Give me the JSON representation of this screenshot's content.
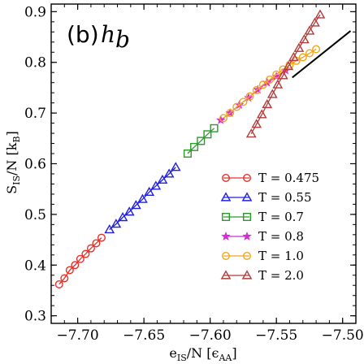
{
  "chart_data": {
    "type": "scatter",
    "panel_label": "(b)",
    "panel_symbol": "h",
    "panel_symbol_sub": "b",
    "xlabel": "e",
    "xlabel_sub": "IS",
    "xlabel_rest": "/N [ϵ",
    "xlabel_unit_sub": "AA",
    "xlabel_end": "]",
    "ylabel": "S",
    "ylabel_sub": "IS",
    "ylabel_rest": "/N [k",
    "ylabel_unit_sub": "B",
    "ylabel_end": "]",
    "xlim": [
      -7.72,
      -7.49
    ],
    "ylim": [
      0.285,
      0.915
    ],
    "xticks": [
      -7.7,
      -7.65,
      -7.6,
      -7.55,
      -7.5
    ],
    "xtick_labels": [
      "−7.70",
      "−7.65",
      "−7.60",
      "−7.55",
      "−7.50"
    ],
    "yticks": [
      0.3,
      0.4,
      0.5,
      0.6,
      0.7,
      0.8,
      0.9
    ],
    "ytick_labels": [
      "0.3",
      "0.4",
      "0.5",
      "0.6",
      "0.7",
      "0.8",
      "0.9"
    ],
    "legend_position": "lower-right",
    "fit_line": {
      "color": "#000000",
      "x": [
        -7.538,
        -7.494
      ],
      "y": [
        0.77,
        0.862
      ]
    },
    "series": [
      {
        "name": "T = 0.475",
        "color": "#e8302a",
        "marker": "circle",
        "x": [
          -7.714,
          -7.71,
          -7.706,
          -7.702,
          -7.698,
          -7.694,
          -7.69,
          -7.686,
          -7.682
        ],
        "y": [
          0.362,
          0.374,
          0.39,
          0.4,
          0.412,
          0.422,
          0.433,
          0.443,
          0.454
        ]
      },
      {
        "name": "T = 0.55",
        "color": "#1f1fe0",
        "marker": "triangle",
        "x": [
          -7.676,
          -7.671,
          -7.666,
          -7.661,
          -7.656,
          -7.651,
          -7.646,
          -7.641,
          -7.636,
          -7.631,
          -7.626
        ],
        "y": [
          0.47,
          0.481,
          0.494,
          0.505,
          0.518,
          0.53,
          0.544,
          0.556,
          0.568,
          0.58,
          0.593
        ]
      },
      {
        "name": "T = 0.7",
        "color": "#2a9a2a",
        "marker": "square",
        "x": [
          -7.617,
          -7.612,
          -7.607,
          -7.602,
          -7.597
        ],
        "y": [
          0.62,
          0.633,
          0.645,
          0.658,
          0.67
        ]
      },
      {
        "name": "T = 0.8",
        "color": "#d82ad8",
        "marker": "star",
        "x": [
          -7.592,
          -7.585,
          -7.578,
          -7.571,
          -7.564,
          -7.557,
          -7.55,
          -7.543
        ],
        "y": [
          0.686,
          0.7,
          0.716,
          0.73,
          0.746,
          0.76,
          0.772,
          0.784
        ]
      },
      {
        "name": "T = 1.0",
        "color": "#f2a51a",
        "marker": "circle",
        "x": [
          -7.59,
          -7.585,
          -7.58,
          -7.575,
          -7.57,
          -7.565,
          -7.56,
          -7.555,
          -7.55,
          -7.545,
          -7.54,
          -7.535,
          -7.53,
          -7.525,
          -7.52
        ],
        "y": [
          0.69,
          0.7,
          0.712,
          0.722,
          0.733,
          0.745,
          0.756,
          0.766,
          0.776,
          0.786,
          0.795,
          0.803,
          0.81,
          0.818,
          0.826
        ]
      },
      {
        "name": "T = 2.0",
        "color": "#b23a3a",
        "marker": "triangle",
        "x": [
          -7.569,
          -7.565,
          -7.561,
          -7.557,
          -7.553,
          -7.549,
          -7.545,
          -7.541,
          -7.537,
          -7.533,
          -7.529,
          -7.525,
          -7.521,
          -7.517
        ],
        "y": [
          0.659,
          0.678,
          0.697,
          0.717,
          0.737,
          0.756,
          0.774,
          0.792,
          0.81,
          0.828,
          0.845,
          0.862,
          0.878,
          0.894
        ]
      }
    ]
  }
}
